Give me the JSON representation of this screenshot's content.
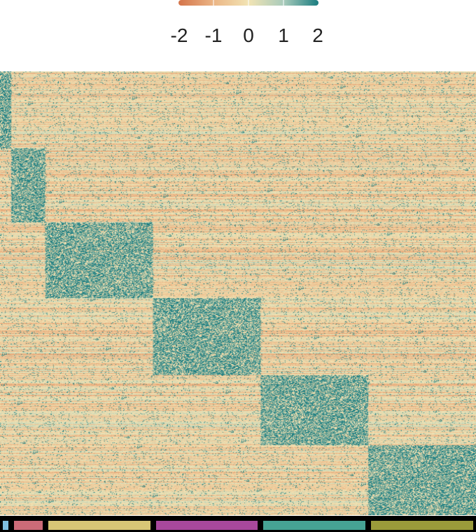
{
  "chart_data": {
    "type": "heatmap",
    "title": "",
    "xlabel": "",
    "ylabel": "",
    "color_scale": {
      "min": -2,
      "max": 2,
      "ticks": [
        "-2",
        "-1",
        "0",
        "1",
        "2"
      ],
      "colors": [
        "#d4744a",
        "#ebb585",
        "#f2e4b4",
        "#a9cbbb",
        "#1b7d80"
      ]
    },
    "clusters": [
      {
        "color": "#7fbfe0",
        "columns": 16
      },
      {
        "color": "#cc6b78",
        "columns": 48
      },
      {
        "color": "#d8c676",
        "columns": 152
      },
      {
        "color": "#a8489c",
        "columns": 152
      },
      {
        "color": "#46a394",
        "columns": 152
      },
      {
        "color": "#9a9b3a",
        "columns": 152
      }
    ],
    "gene_blocks": [
      {
        "rows": 110,
        "high_in_cluster": 1
      },
      {
        "rows": 106,
        "high_in_cluster": 2
      },
      {
        "rows": 108,
        "high_in_cluster": 3
      },
      {
        "rows": 110,
        "high_in_cluster": 4
      },
      {
        "rows": 100,
        "high_in_cluster": 5
      },
      {
        "rows": 100,
        "high_in_cluster": 6
      }
    ]
  }
}
